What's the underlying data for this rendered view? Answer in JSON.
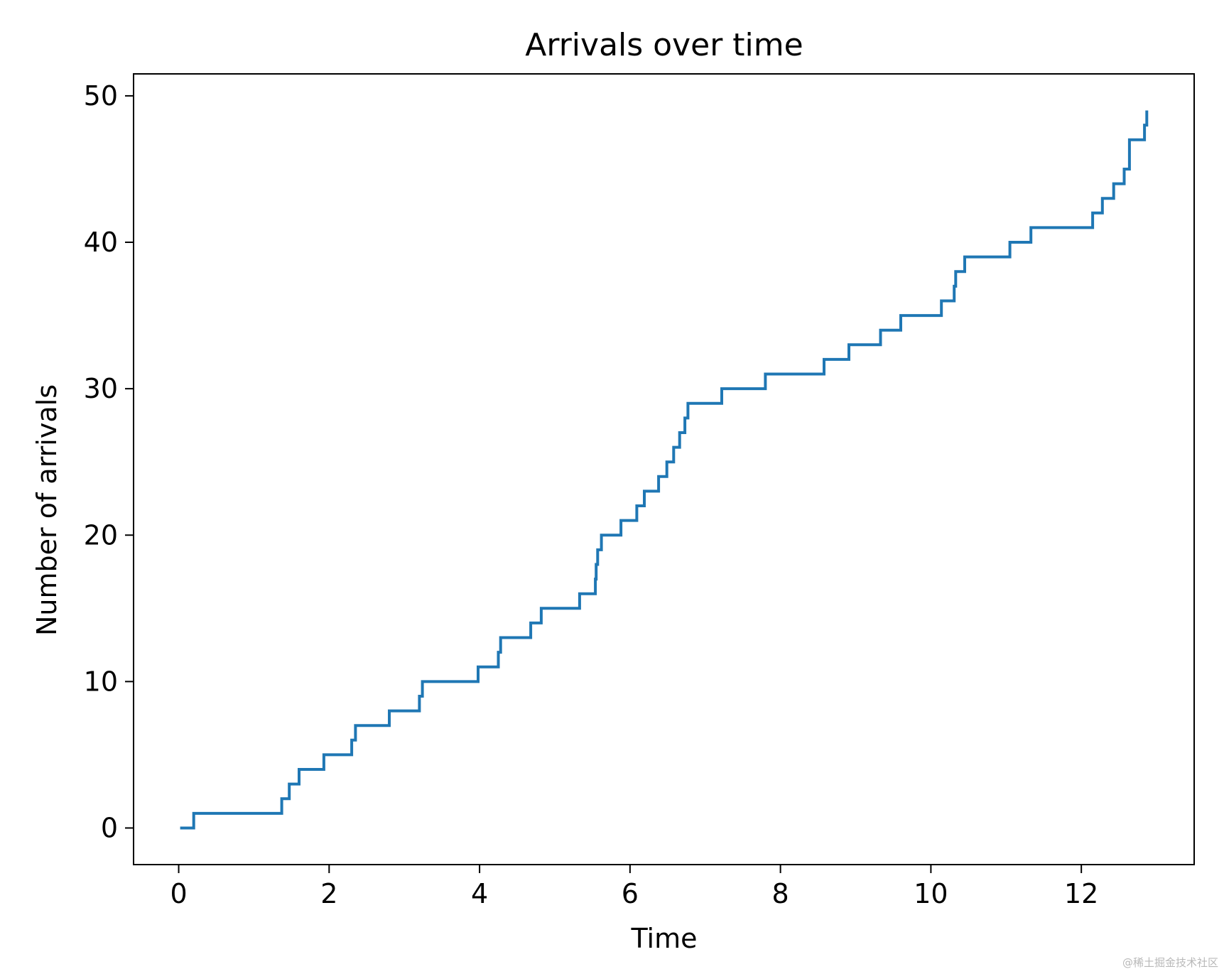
{
  "chart_data": {
    "type": "line",
    "title": "Arrivals over time",
    "xlabel": "Time",
    "ylabel": "Number of arrivals",
    "xlim": [
      -0.6,
      13.5
    ],
    "ylim": [
      -2.5,
      51.5
    ],
    "xticks": [
      0,
      2,
      4,
      6,
      8,
      10,
      12
    ],
    "yticks": [
      0,
      10,
      20,
      30,
      40,
      50
    ],
    "grid": false,
    "legend": "none",
    "series": [
      {
        "name": "",
        "color": "#1f77b4",
        "drawstyle": "steps-post",
        "x": [
          0.02,
          0.2,
          1.37,
          1.47,
          1.6,
          1.93,
          2.3,
          2.35,
          2.8,
          3.2,
          3.24,
          3.98,
          4.25,
          4.28,
          4.68,
          4.82,
          5.33,
          5.54,
          5.55,
          5.57,
          5.62,
          5.88,
          6.09,
          6.19,
          6.38,
          6.49,
          6.58,
          6.66,
          6.73,
          6.77,
          7.22,
          7.8,
          8.58,
          8.91,
          9.33,
          9.6,
          10.14,
          10.31,
          10.33,
          10.45,
          11.05,
          11.33,
          12.15,
          12.28,
          12.43,
          12.57,
          12.64,
          12.84,
          12.87
        ],
        "y": [
          0,
          1,
          2,
          3,
          4,
          5,
          6,
          7,
          8,
          9,
          10,
          11,
          12,
          13,
          14,
          15,
          16,
          17,
          18,
          19,
          20,
          21,
          22,
          23,
          24,
          25,
          26,
          27,
          28,
          29,
          30,
          31,
          32,
          33,
          34,
          35,
          36,
          37,
          38,
          39,
          40,
          41,
          42,
          43,
          44,
          45,
          47,
          48,
          49
        ]
      }
    ]
  },
  "watermark": "@稀土掘金技术社区"
}
